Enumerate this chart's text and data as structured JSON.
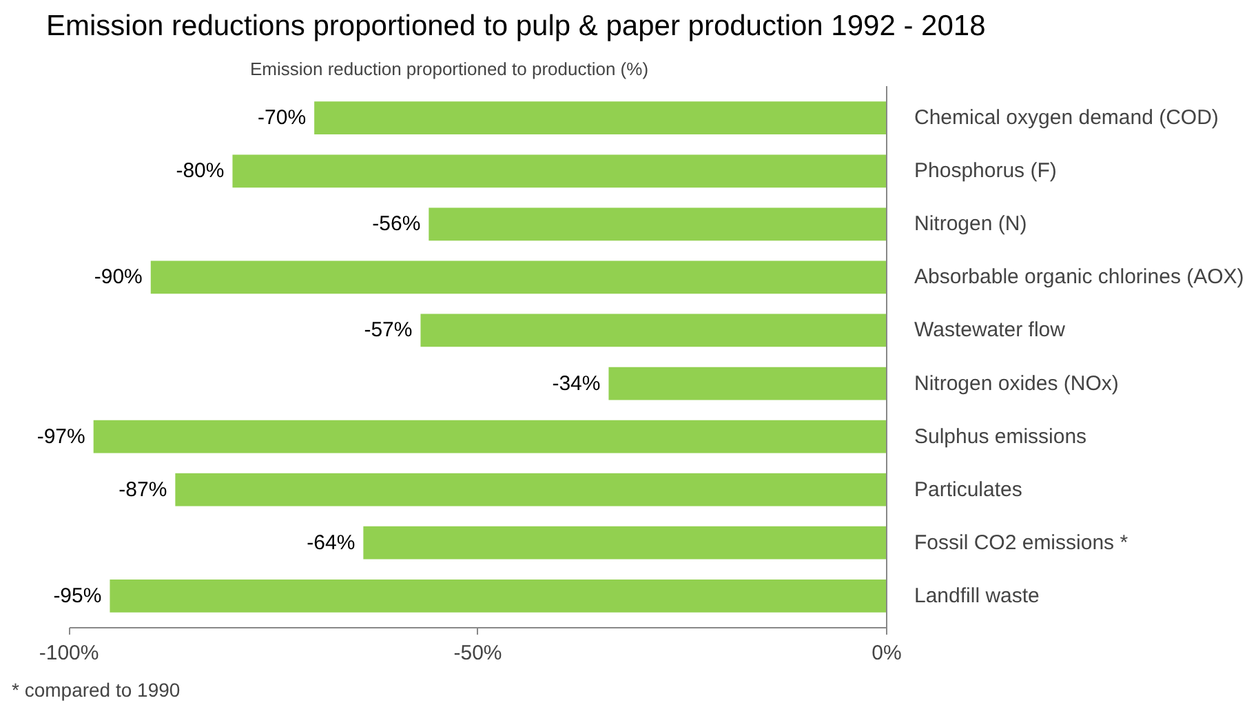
{
  "chart_data": {
    "type": "bar",
    "orientation": "horizontal",
    "title": "Emission reductions proportioned to pulp & paper production 1992 - 2018",
    "xlabel": "Emission reduction proportioned to production (%)",
    "categories": [
      "Chemical oxygen demand (COD)",
      "Phosphorus (F)",
      "Nitrogen (N)",
      "Absorbable organic chlorines (AOX)",
      "Wastewater flow",
      "Nitrogen oxides (NOx)",
      "Sulphus emissions",
      "Particulates",
      "Fossil CO2 emissions *",
      "Landfill waste"
    ],
    "values": [
      -70,
      -80,
      -56,
      -90,
      -57,
      -34,
      -97,
      -87,
      -64,
      -95
    ],
    "value_labels": [
      "-70%",
      "-80%",
      "-56%",
      "-90%",
      "-57%",
      "-34%",
      "-97%",
      "-87%",
      "-64%",
      "-95%"
    ],
    "color": "#92d050",
    "xlim": [
      -100,
      0
    ],
    "xticks": [
      {
        "value": -100,
        "label": "-100%"
      },
      {
        "value": -50,
        "label": "-50%"
      },
      {
        "value": 0,
        "label": "0%"
      }
    ],
    "grid": false,
    "annotations": [
      "* compared to 1990"
    ]
  }
}
